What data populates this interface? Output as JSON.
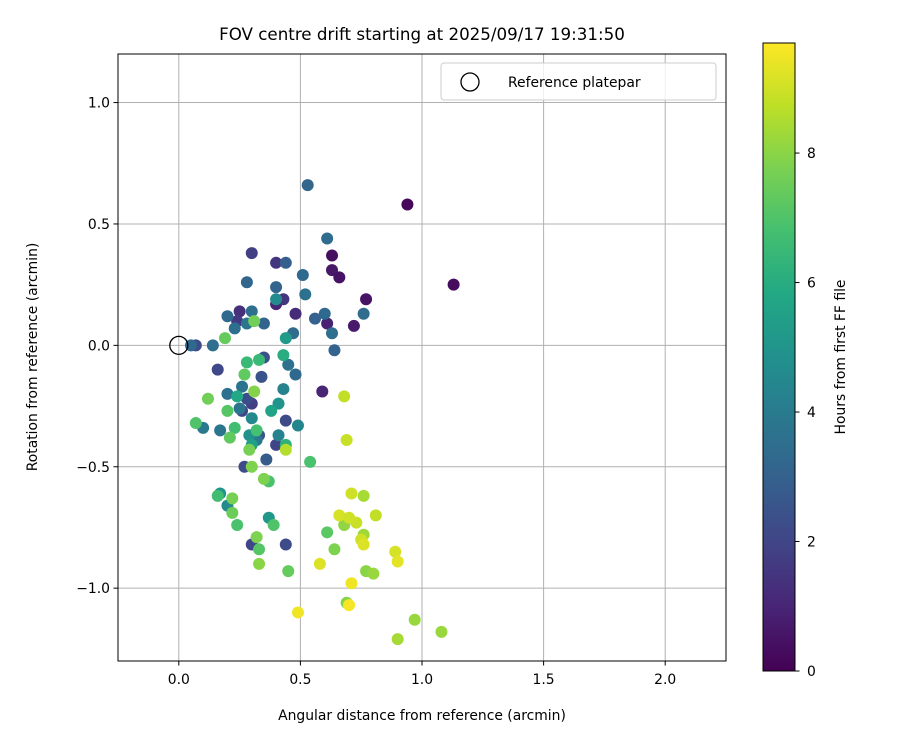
{
  "chart_data": {
    "type": "scatter",
    "title": "FOV centre drift starting at 2025/09/17 19:31:50",
    "xlabel": "Angular distance from reference (arcmin)",
    "ylabel": "Rotation from reference (arcmin)",
    "xlim": [
      -0.25,
      2.25
    ],
    "ylim": [
      -1.3,
      1.2
    ],
    "xticks": [
      0.0,
      0.5,
      1.0,
      1.5,
      2.0
    ],
    "xtick_labels": [
      "0.0",
      "0.5",
      "1.0",
      "1.5",
      "2.0"
    ],
    "yticks": [
      -1.0,
      -0.5,
      0.0,
      0.5,
      1.0
    ],
    "ytick_labels": [
      "−1.0",
      "−0.5",
      "0.0",
      "0.5",
      "1.0"
    ],
    "grid": true,
    "legend": {
      "location": "upper right",
      "entries": [
        "Reference platepar"
      ]
    },
    "reference_point": {
      "x": 0.0,
      "y": 0.0,
      "label": "Reference platepar"
    },
    "colorbar": {
      "label": "Hours from first FF file",
      "colormap": "viridis",
      "range": [
        0,
        9.7
      ],
      "ticks": [
        0,
        2,
        4,
        6,
        8
      ],
      "tick_labels": [
        "0",
        "2",
        "4",
        "6",
        "8"
      ]
    },
    "points": [
      {
        "x": 0.94,
        "y": 0.58,
        "c": 0.2
      },
      {
        "x": 1.13,
        "y": 0.25,
        "c": 0.3
      },
      {
        "x": 0.63,
        "y": 0.37,
        "c": 0.4
      },
      {
        "x": 0.63,
        "y": 0.31,
        "c": 0.6
      },
      {
        "x": 0.66,
        "y": 0.28,
        "c": 0.5
      },
      {
        "x": 0.77,
        "y": 0.19,
        "c": 0.5
      },
      {
        "x": 0.72,
        "y": 0.08,
        "c": 0.7
      },
      {
        "x": 0.59,
        "y": -0.19,
        "c": 1.0
      },
      {
        "x": 0.61,
        "y": 0.09,
        "c": 0.9
      },
      {
        "x": 0.4,
        "y": 0.17,
        "c": 1.0
      },
      {
        "x": 0.48,
        "y": 0.13,
        "c": 1.2
      },
      {
        "x": 0.43,
        "y": 0.19,
        "c": 1.5
      },
      {
        "x": 0.25,
        "y": 0.14,
        "c": 1.3
      },
      {
        "x": 0.24,
        "y": 0.1,
        "c": 1.6
      },
      {
        "x": 0.3,
        "y": 0.38,
        "c": 1.8
      },
      {
        "x": 0.4,
        "y": 0.34,
        "c": 1.5
      },
      {
        "x": 0.07,
        "y": 0.0,
        "c": 2.2
      },
      {
        "x": 0.16,
        "y": -0.1,
        "c": 2.1
      },
      {
        "x": 0.3,
        "y": -0.24,
        "c": 1.8
      },
      {
        "x": 0.26,
        "y": -0.27,
        "c": 2.0
      },
      {
        "x": 0.28,
        "y": -0.22,
        "c": 2.3
      },
      {
        "x": 0.33,
        "y": -0.37,
        "c": 2.5
      },
      {
        "x": 0.34,
        "y": -0.13,
        "c": 2.5
      },
      {
        "x": 0.35,
        "y": -0.05,
        "c": 2.4
      },
      {
        "x": 0.44,
        "y": -0.31,
        "c": 2.2
      },
      {
        "x": 0.4,
        "y": -0.41,
        "c": 2.0
      },
      {
        "x": 0.27,
        "y": -0.5,
        "c": 2.2
      },
      {
        "x": 0.3,
        "y": -0.82,
        "c": 2.0
      },
      {
        "x": 0.44,
        "y": -0.82,
        "c": 2.2
      },
      {
        "x": 0.36,
        "y": -0.47,
        "c": 2.8
      },
      {
        "x": 0.44,
        "y": 0.34,
        "c": 2.9
      },
      {
        "x": 0.28,
        "y": 0.26,
        "c": 3.2
      },
      {
        "x": 0.53,
        "y": 0.66,
        "c": 3.2
      },
      {
        "x": 0.61,
        "y": 0.44,
        "c": 3.4
      },
      {
        "x": 0.51,
        "y": 0.29,
        "c": 3.3
      },
      {
        "x": 0.52,
        "y": 0.21,
        "c": 3.6
      },
      {
        "x": 0.4,
        "y": 0.24,
        "c": 3.1
      },
      {
        "x": 0.56,
        "y": 0.11,
        "c": 3.0
      },
      {
        "x": 0.6,
        "y": 0.13,
        "c": 3.3
      },
      {
        "x": 0.63,
        "y": 0.05,
        "c": 3.5
      },
      {
        "x": 0.64,
        "y": -0.02,
        "c": 3.1
      },
      {
        "x": 0.76,
        "y": 0.13,
        "c": 3.4
      },
      {
        "x": 0.47,
        "y": 0.05,
        "c": 3.4
      },
      {
        "x": 0.35,
        "y": 0.09,
        "c": 3.1
      },
      {
        "x": 0.2,
        "y": 0.12,
        "c": 3.3
      },
      {
        "x": 0.23,
        "y": 0.07,
        "c": 3.5
      },
      {
        "x": 0.28,
        "y": 0.09,
        "c": 3.8
      },
      {
        "x": 0.3,
        "y": 0.14,
        "c": 3.5
      },
      {
        "x": 0.14,
        "y": 0.0,
        "c": 3.5
      },
      {
        "x": 0.05,
        "y": 0.0,
        "c": 3.3
      },
      {
        "x": 0.45,
        "y": -0.08,
        "c": 3.6
      },
      {
        "x": 0.48,
        "y": -0.12,
        "c": 3.3
      },
      {
        "x": 0.26,
        "y": -0.17,
        "c": 3.7
      },
      {
        "x": 0.2,
        "y": -0.2,
        "c": 3.6
      },
      {
        "x": 0.25,
        "y": -0.26,
        "c": 3.8
      },
      {
        "x": 0.17,
        "y": -0.35,
        "c": 3.8
      },
      {
        "x": 0.1,
        "y": -0.34,
        "c": 3.9
      },
      {
        "x": 0.32,
        "y": -0.39,
        "c": 3.9
      },
      {
        "x": 0.43,
        "y": -0.18,
        "c": 4.3
      },
      {
        "x": 0.41,
        "y": -0.37,
        "c": 4.3
      },
      {
        "x": 0.49,
        "y": -0.33,
        "c": 4.4
      },
      {
        "x": 0.3,
        "y": -0.3,
        "c": 4.5
      },
      {
        "x": 0.4,
        "y": 0.19,
        "c": 4.6
      },
      {
        "x": 0.29,
        "y": -0.37,
        "c": 4.9
      },
      {
        "x": 0.17,
        "y": -0.61,
        "c": 5.0
      },
      {
        "x": 0.2,
        "y": -0.66,
        "c": 4.6
      },
      {
        "x": 0.37,
        "y": -0.71,
        "c": 5.1
      },
      {
        "x": 0.41,
        "y": -0.24,
        "c": 5.0
      },
      {
        "x": 0.44,
        "y": 0.03,
        "c": 5.3
      },
      {
        "x": 0.3,
        "y": -0.41,
        "c": 5.5
      },
      {
        "x": 0.38,
        "y": -0.27,
        "c": 5.6
      },
      {
        "x": 0.24,
        "y": -0.21,
        "c": 5.8
      },
      {
        "x": 0.43,
        "y": -0.04,
        "c": 6.0
      },
      {
        "x": 0.28,
        "y": -0.07,
        "c": 6.5
      },
      {
        "x": 0.33,
        "y": -0.06,
        "c": 6.5
      },
      {
        "x": 0.44,
        "y": -0.41,
        "c": 6.2
      },
      {
        "x": 0.32,
        "y": -0.35,
        "c": 6.8
      },
      {
        "x": 0.23,
        "y": -0.34,
        "c": 6.7
      },
      {
        "x": 0.37,
        "y": -0.56,
        "c": 6.9
      },
      {
        "x": 0.16,
        "y": -0.62,
        "c": 6.7
      },
      {
        "x": 0.24,
        "y": -0.74,
        "c": 6.9
      },
      {
        "x": 0.39,
        "y": -0.74,
        "c": 7.0
      },
      {
        "x": 0.54,
        "y": -0.48,
        "c": 6.9
      },
      {
        "x": 0.61,
        "y": -0.77,
        "c": 7.2
      },
      {
        "x": 0.45,
        "y": -0.93,
        "c": 7.4
      },
      {
        "x": 0.33,
        "y": -0.84,
        "c": 7.1
      },
      {
        "x": 0.07,
        "y": -0.32,
        "c": 7.0
      },
      {
        "x": 0.2,
        "y": -0.27,
        "c": 7.1
      },
      {
        "x": 0.21,
        "y": -0.38,
        "c": 7.3
      },
      {
        "x": 0.27,
        "y": -0.12,
        "c": 7.3
      },
      {
        "x": 0.19,
        "y": 0.03,
        "c": 7.4
      },
      {
        "x": 0.12,
        "y": -0.22,
        "c": 7.6
      },
      {
        "x": 0.29,
        "y": -0.43,
        "c": 7.7
      },
      {
        "x": 0.3,
        "y": -0.5,
        "c": 7.8
      },
      {
        "x": 0.31,
        "y": 0.1,
        "c": 7.6
      },
      {
        "x": 0.31,
        "y": -0.19,
        "c": 7.9
      },
      {
        "x": 0.22,
        "y": -0.63,
        "c": 7.7
      },
      {
        "x": 0.22,
        "y": -0.69,
        "c": 7.5
      },
      {
        "x": 0.35,
        "y": -0.55,
        "c": 7.8
      },
      {
        "x": 0.44,
        "y": -0.43,
        "c": 8.6
      },
      {
        "x": 0.32,
        "y": -0.79,
        "c": 7.8
      },
      {
        "x": 0.33,
        "y": -0.9,
        "c": 8.0
      },
      {
        "x": 0.64,
        "y": -0.84,
        "c": 7.8
      },
      {
        "x": 0.68,
        "y": -0.74,
        "c": 8.1
      },
      {
        "x": 0.76,
        "y": -0.62,
        "c": 8.4
      },
      {
        "x": 0.76,
        "y": -0.78,
        "c": 8.3
      },
      {
        "x": 0.77,
        "y": -0.93,
        "c": 8.0
      },
      {
        "x": 0.8,
        "y": -0.94,
        "c": 8.2
      },
      {
        "x": 0.69,
        "y": -1.06,
        "c": 7.9
      },
      {
        "x": 0.97,
        "y": -1.13,
        "c": 8.2
      },
      {
        "x": 1.08,
        "y": -1.18,
        "c": 8.2
      },
      {
        "x": 0.9,
        "y": -1.21,
        "c": 8.4
      },
      {
        "x": 0.81,
        "y": -0.7,
        "c": 8.8
      },
      {
        "x": 0.73,
        "y": -0.73,
        "c": 8.9
      },
      {
        "x": 0.68,
        "y": -0.21,
        "c": 8.8
      },
      {
        "x": 0.69,
        "y": -0.39,
        "c": 8.9
      },
      {
        "x": 0.71,
        "y": -0.61,
        "c": 9.0
      },
      {
        "x": 0.66,
        "y": -0.7,
        "c": 9.1
      },
      {
        "x": 0.7,
        "y": -0.71,
        "c": 9.0
      },
      {
        "x": 0.75,
        "y": -0.8,
        "c": 9.0
      },
      {
        "x": 0.76,
        "y": -0.82,
        "c": 9.2
      },
      {
        "x": 0.89,
        "y": -0.85,
        "c": 9.1
      },
      {
        "x": 0.9,
        "y": -0.89,
        "c": 9.3
      },
      {
        "x": 0.58,
        "y": -0.9,
        "c": 9.2
      },
      {
        "x": 0.71,
        "y": -0.98,
        "c": 9.5
      },
      {
        "x": 0.7,
        "y": -1.07,
        "c": 9.6
      },
      {
        "x": 0.49,
        "y": -1.1,
        "c": 9.5
      }
    ]
  }
}
